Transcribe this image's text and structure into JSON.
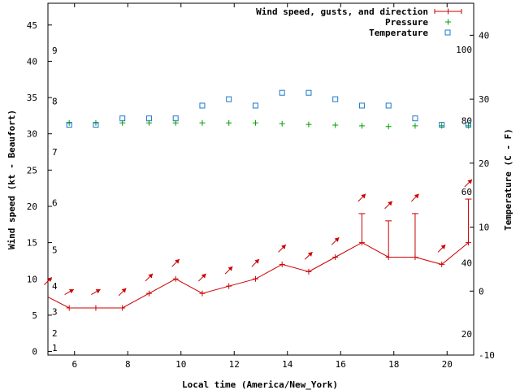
{
  "chart_data": {
    "type": "line",
    "xlabel": "Local time (America/New_York)",
    "ylabel": "Wind speed (kt - Beaufort)",
    "y2label": "Temperature (C - F)",
    "xlim": [
      5,
      21
    ],
    "ylim": [
      -0.5,
      48
    ],
    "y2lim": [
      -10,
      45
    ],
    "x_ticks": [
      6,
      8,
      10,
      12,
      14,
      16,
      18,
      20
    ],
    "y_ticks": [
      0,
      5,
      10,
      15,
      20,
      25,
      30,
      35,
      40,
      45
    ],
    "y2_ticks": [
      -10,
      0,
      10,
      20,
      30,
      40
    ],
    "beaufort_labels": [
      {
        "label": "1",
        "value": 0.5
      },
      {
        "label": "2",
        "value": 2.5
      },
      {
        "label": "3",
        "value": 5.5
      },
      {
        "label": "4",
        "value": 9
      },
      {
        "label": "5",
        "value": 14
      },
      {
        "label": "6",
        "value": 20.5
      },
      {
        "label": "7",
        "value": 27.5
      },
      {
        "label": "8",
        "value": 34.5
      },
      {
        "label": "9",
        "value": 41.5
      }
    ],
    "fahrenheit_labels": [
      {
        "label": "20",
        "value": 20
      },
      {
        "label": "40",
        "value": 40
      },
      {
        "label": "60",
        "value": 60
      },
      {
        "label": "80",
        "value": 80
      },
      {
        "label": "100",
        "value": 100
      }
    ],
    "legend": [
      {
        "name": "Wind speed, gusts, and direction",
        "color": "#cc0000",
        "marker": "plus-line"
      },
      {
        "name": "Pressure",
        "color": "#00a000",
        "marker": "plus"
      },
      {
        "name": "Temperature",
        "color": "#1e78c8",
        "marker": "square"
      }
    ],
    "series": [
      {
        "name": "Wind speed, gusts, and direction",
        "color": "#cc0000",
        "x": [
          5,
          5.8,
          6.8,
          7.8,
          8.8,
          9.8,
          10.8,
          11.8,
          12.8,
          13.8,
          14.8,
          15.8,
          16.8,
          17.8,
          18.8,
          19.8,
          20.8
        ],
        "values": [
          7.5,
          6,
          6,
          6,
          8,
          10,
          8,
          9,
          10,
          12,
          11,
          13,
          15,
          13,
          13,
          12,
          15
        ],
        "gusts": [
          null,
          null,
          null,
          null,
          null,
          null,
          null,
          null,
          null,
          null,
          null,
          null,
          19,
          18,
          19,
          null,
          21
        ],
        "direction_deg": [
          45,
          60,
          60,
          45,
          45,
          45,
          45,
          45,
          45,
          45,
          45,
          45,
          45,
          45,
          45,
          45,
          45
        ]
      },
      {
        "name": "Pressure",
        "color": "#00a000",
        "x": [
          5.8,
          6.8,
          7.8,
          8.8,
          9.8,
          10.8,
          11.8,
          12.8,
          13.8,
          14.8,
          15.8,
          16.8,
          17.8,
          18.8,
          19.8,
          20.8
        ],
        "values": [
          31.5,
          31.5,
          31.5,
          31.5,
          31.5,
          31.5,
          31.5,
          31.5,
          31.4,
          31.3,
          31.2,
          31.1,
          31.0,
          31.1,
          31.1,
          31.1
        ]
      },
      {
        "name": "Temperature",
        "axis": "y2",
        "color": "#1e78c8",
        "x": [
          5.8,
          6.8,
          7.8,
          8.8,
          9.8,
          10.8,
          11.8,
          12.8,
          13.8,
          14.8,
          15.8,
          16.8,
          17.8,
          18.8,
          19.8,
          20.8
        ],
        "values": [
          26,
          26,
          27,
          27,
          27,
          29,
          30,
          29,
          31,
          31,
          30,
          29,
          29,
          27,
          26,
          26
        ]
      }
    ]
  }
}
